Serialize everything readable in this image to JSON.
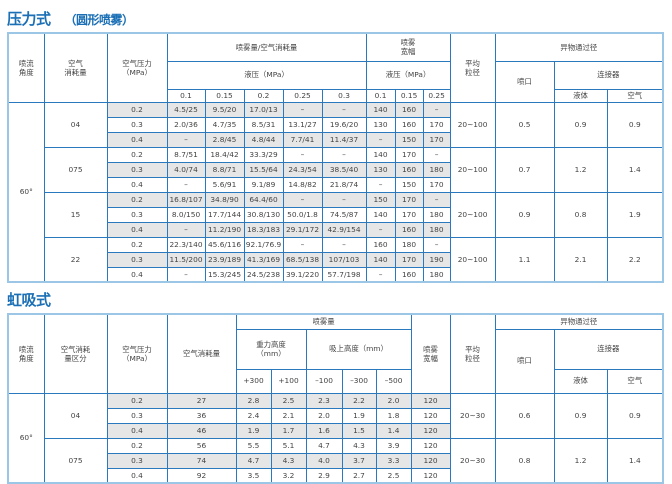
{
  "section1": {
    "title": "压力式",
    "subtitle": "（圆形喷雾）",
    "headers": {
      "angle": "喷流\n角度",
      "air_consumption": "空气\n消耗量",
      "air_pressure": "空气压力\n（MPa）",
      "spray_air": "喷雾量/空气消耗量",
      "liquid_pressure": "液压（MPa）",
      "liquid_pressures": [
        "0.1",
        "0.15",
        "0.2",
        "0.25",
        "0.3"
      ],
      "spray_width": "喷雾\n宽幅",
      "width_liquid_pressure": "液压（MPa）",
      "width_pressures": [
        "0.1",
        "0.15",
        "0.25"
      ],
      "avg_particle": "平均\n粒径",
      "passage": "异物通过径",
      "nozzle": "喷口",
      "connector": "连接器",
      "liquid": "液体",
      "air": "空气"
    },
    "angle": "60°",
    "groups": [
      {
        "code": "04",
        "particle": "20~100",
        "nozzle": "0.5",
        "liquid": "0.9",
        "air": "0.9",
        "rows": [
          {
            "pressure": "0.2",
            "spray": [
              "4.5/25",
              "9.5/20",
              "17.0/13",
              "–",
              "–"
            ],
            "width": [
              "140",
              "160",
              "–"
            ]
          },
          {
            "pressure": "0.3",
            "spray": [
              "2.0/36",
              "4.7/35",
              "8.5/31",
              "13.1/27",
              "19.6/20"
            ],
            "width": [
              "130",
              "160",
              "170"
            ]
          },
          {
            "pressure": "0.4",
            "spray": [
              "–",
              "2.8/45",
              "4.8/44",
              "7.7/41",
              "11.4/37"
            ],
            "width": [
              "–",
              "150",
              "170"
            ]
          }
        ]
      },
      {
        "code": "075",
        "particle": "20~100",
        "nozzle": "0.7",
        "liquid": "1.2",
        "air": "1.4",
        "rows": [
          {
            "pressure": "0.2",
            "spray": [
              "8.7/51",
              "18.4/42",
              "33.3/29",
              "–",
              "–"
            ],
            "width": [
              "140",
              "170",
              "–"
            ]
          },
          {
            "pressure": "0.3",
            "spray": [
              "4.0/74",
              "8.8/71",
              "15.5/64",
              "24.3/54",
              "38.5/40"
            ],
            "width": [
              "130",
              "160",
              "180"
            ]
          },
          {
            "pressure": "0.4",
            "spray": [
              "–",
              "5.6/91",
              "9.1/89",
              "14.8/82",
              "21.8/74"
            ],
            "width": [
              "–",
              "150",
              "170"
            ]
          }
        ]
      },
      {
        "code": "15",
        "particle": "20~100",
        "nozzle": "0.9",
        "liquid": "0.8",
        "air": "1.9",
        "rows": [
          {
            "pressure": "0.2",
            "spray": [
              "16.8/107",
              "34.8/90",
              "64.4/60",
              "–",
              "–"
            ],
            "width": [
              "150",
              "170",
              "–"
            ]
          },
          {
            "pressure": "0.3",
            "spray": [
              "8.0/150",
              "17.7/144",
              "30.8/130",
              "50.0/1.8",
              "74.5/87"
            ],
            "width": [
              "140",
              "170",
              "180"
            ]
          },
          {
            "pressure": "0.4",
            "spray": [
              "–",
              "11.2/190",
              "18.3/183",
              "29.1/172",
              "42.9/154"
            ],
            "width": [
              "–",
              "160",
              "180"
            ]
          }
        ]
      },
      {
        "code": "22",
        "particle": "20~100",
        "nozzle": "1.1",
        "liquid": "2.1",
        "air": "2.2",
        "rows": [
          {
            "pressure": "0.2",
            "spray": [
              "22.3/140",
              "45.6/116",
              "92.1/76.9",
              "–",
              "–"
            ],
            "width": [
              "160",
              "180",
              "–"
            ]
          },
          {
            "pressure": "0.3",
            "spray": [
              "11.5/200",
              "23.9/189",
              "41.3/169",
              "68.5/138",
              "107/103"
            ],
            "width": [
              "140",
              "170",
              "190"
            ]
          },
          {
            "pressure": "0.4",
            "spray": [
              "–",
              "15.3/245",
              "24.5/238",
              "39.1/220",
              "57.7/198"
            ],
            "width": [
              "–",
              "160",
              "180"
            ]
          }
        ]
      }
    ]
  },
  "section2": {
    "title": "虹吸式",
    "headers": {
      "angle": "喷流\n角度",
      "consumption_class": "空气消耗\n量区分",
      "air_pressure": "空气压力\n（MPa）",
      "air_consumption": "空气消耗量",
      "spray": "喷雾量",
      "gravity_height": "重力高度\n（mm）",
      "suction_height": "吸上高度（mm）",
      "heights": [
        "+300",
        "+100",
        "–100",
        "–300",
        "–500"
      ],
      "spray_width": "喷雾\n宽幅",
      "avg_particle": "平均\n粒径",
      "passage": "异物通过径",
      "nozzle": "喷口",
      "connector": "连接器",
      "liquid": "液体",
      "air": "空气"
    },
    "angle": "60°",
    "groups": [
      {
        "code": "04",
        "particle": "20~30",
        "nozzle": "0.6",
        "liquid": "0.9",
        "air": "0.9",
        "rows": [
          {
            "pressure": "0.2",
            "consumption": "27",
            "spray": [
              "2.8",
              "2.5",
              "2.3",
              "2.2",
              "2.0"
            ],
            "width": "120"
          },
          {
            "pressure": "0.3",
            "consumption": "36",
            "spray": [
              "2.4",
              "2.1",
              "2.0",
              "1.9",
              "1.8"
            ],
            "width": "120"
          },
          {
            "pressure": "0.4",
            "consumption": "46",
            "spray": [
              "1.9",
              "1.7",
              "1.6",
              "1.5",
              "1.4"
            ],
            "width": "120"
          }
        ]
      },
      {
        "code": "075",
        "particle": "20~30",
        "nozzle": "0.8",
        "liquid": "1.2",
        "air": "1.4",
        "rows": [
          {
            "pressure": "0.2",
            "consumption": "56",
            "spray": [
              "5.5",
              "5.1",
              "4.7",
              "4.3",
              "3.9"
            ],
            "width": "120"
          },
          {
            "pressure": "0.3",
            "consumption": "74",
            "spray": [
              "4.7",
              "4.3",
              "4.0",
              "3.7",
              "3.3"
            ],
            "width": "120"
          },
          {
            "pressure": "0.4",
            "consumption": "92",
            "spray": [
              "3.5",
              "3.2",
              "2.9",
              "2.7",
              "2.5"
            ],
            "width": "120"
          }
        ]
      }
    ]
  },
  "colors": {
    "title": "#1a6fb5",
    "border": "#2a78bd",
    "shade": "#e6e6e6"
  }
}
